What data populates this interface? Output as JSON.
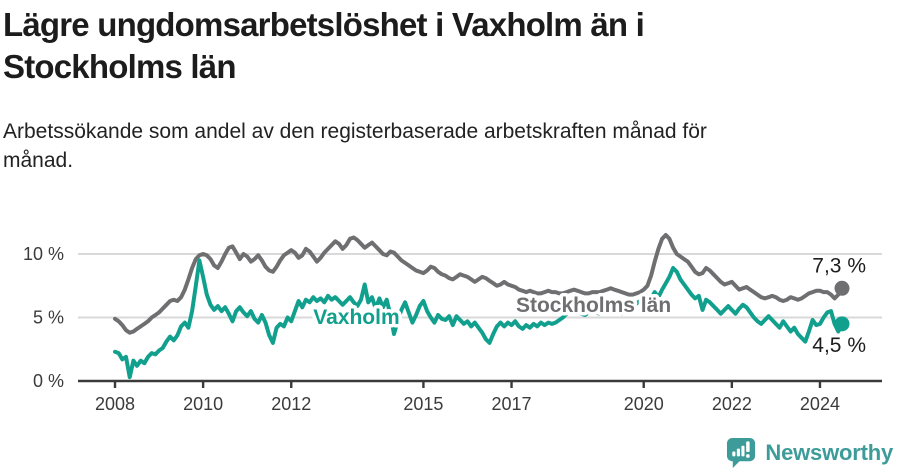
{
  "footer": {
    "brand": "Newsworthy"
  },
  "chart_data": {
    "type": "line",
    "title": "Lägre ungdomsarbetslöshet i Vaxholm än i Stockholms län",
    "subtitle": "Arbetssökande som andel av den registerbaserade arbetskraften månad för månad.",
    "unit": "%",
    "x_start_year": 2008,
    "interval": "monthly",
    "x_ticks": [
      "2008",
      "2010",
      "2012",
      "2015",
      "2017",
      "2020",
      "2022",
      "2024"
    ],
    "y_ticks": [
      {
        "value": 0,
        "label": "0 %"
      },
      {
        "value": 5,
        "label": "5 %"
      },
      {
        "value": 10,
        "label": "10 %"
      }
    ],
    "ylim": [
      0,
      12.3
    ],
    "xlim": [
      2007.2,
      2025.4
    ],
    "grid": "horizontal",
    "legend_position": "inline-labels",
    "axis_color": "#3a3a3a",
    "grid_color": "#d9d9d9",
    "tick_label_color": "#3b3b3b",
    "end_label_color": "#1d1d1d",
    "series": [
      {
        "name": "Stockholms län",
        "color": "#6f6f72",
        "end_label": "7,3 %",
        "end_value": 7.3,
        "label_anchor": {
          "year": 2017.1,
          "value": 5.45
        },
        "values": [
          4.9,
          4.7,
          4.4,
          4.0,
          3.8,
          3.9,
          4.1,
          4.3,
          4.5,
          4.7,
          5.0,
          5.2,
          5.4,
          5.7,
          6.0,
          6.3,
          6.4,
          6.3,
          6.6,
          7.2,
          8.0,
          8.9,
          9.6,
          9.9,
          10.0,
          9.9,
          9.6,
          9.1,
          8.9,
          9.4,
          10.0,
          10.5,
          10.6,
          10.1,
          9.6,
          10.0,
          9.8,
          9.4,
          9.6,
          9.9,
          9.5,
          9.0,
          8.7,
          8.6,
          9.0,
          9.5,
          9.9,
          10.1,
          10.3,
          10.1,
          9.7,
          9.9,
          10.4,
          10.2,
          9.8,
          9.4,
          9.7,
          10.1,
          10.4,
          10.7,
          11.0,
          10.8,
          10.4,
          10.7,
          11.2,
          11.3,
          11.1,
          10.8,
          10.5,
          10.7,
          10.9,
          10.6,
          10.3,
          10.0,
          9.9,
          10.2,
          10.1,
          9.8,
          9.5,
          9.3,
          9.1,
          8.9,
          8.7,
          8.6,
          8.5,
          8.7,
          9.0,
          8.9,
          8.6,
          8.4,
          8.3,
          8.1,
          8.0,
          8.2,
          8.4,
          8.3,
          8.2,
          8.0,
          7.8,
          8.0,
          8.2,
          8.1,
          7.9,
          7.7,
          7.5,
          7.6,
          7.8,
          7.6,
          7.5,
          7.4,
          7.2,
          7.1,
          7.0,
          7.1,
          7.0,
          6.9,
          6.9,
          7.0,
          7.1,
          7.0,
          7.0,
          6.9,
          6.9,
          7.0,
          7.1,
          7.2,
          7.1,
          7.0,
          6.9,
          6.9,
          7.0,
          7.0,
          7.0,
          7.1,
          7.2,
          7.3,
          7.2,
          7.1,
          7.0,
          6.9,
          6.8,
          6.8,
          6.9,
          7.0,
          7.2,
          7.5,
          8.3,
          9.4,
          10.4,
          11.2,
          11.5,
          11.2,
          10.5,
          10.0,
          9.8,
          9.6,
          9.4,
          9.0,
          8.6,
          8.4,
          8.5,
          8.9,
          8.7,
          8.4,
          8.1,
          7.8,
          7.6,
          7.7,
          7.8,
          7.5,
          7.2,
          7.3,
          7.4,
          7.2,
          7.0,
          6.8,
          6.6,
          6.5,
          6.6,
          6.7,
          6.6,
          6.4,
          6.3,
          6.4,
          6.6,
          6.5,
          6.4,
          6.5,
          6.7,
          6.9,
          7.0,
          7.1,
          7.1,
          7.0,
          7.0,
          6.8,
          6.5,
          6.8,
          7.3
        ]
      },
      {
        "name": "Vaxholm",
        "color": "#12a08e",
        "end_label": "4,5 %",
        "end_value": 4.5,
        "label_anchor": {
          "year": 2012.5,
          "value": 4.5
        },
        "values": [
          2.3,
          2.2,
          1.7,
          1.9,
          0.3,
          1.6,
          1.2,
          1.6,
          1.4,
          1.9,
          2.2,
          2.1,
          2.4,
          2.6,
          3.1,
          3.5,
          3.2,
          3.6,
          4.3,
          4.6,
          4.2,
          5.5,
          7.5,
          9.5,
          8.2,
          6.8,
          6.0,
          5.6,
          5.9,
          5.5,
          5.8,
          5.3,
          4.7,
          5.5,
          5.8,
          5.4,
          5.1,
          5.5,
          4.9,
          4.6,
          5.2,
          4.6,
          3.6,
          3.0,
          4.2,
          4.5,
          4.3,
          5.0,
          4.7,
          5.5,
          6.3,
          5.8,
          6.4,
          6.2,
          6.6,
          6.3,
          6.5,
          6.2,
          6.7,
          6.4,
          6.6,
          6.3,
          6.0,
          6.3,
          6.6,
          6.2,
          5.9,
          6.4,
          7.6,
          6.2,
          6.6,
          5.7,
          6.5,
          5.8,
          6.4,
          5.2,
          3.7,
          4.7,
          5.6,
          6.2,
          5.4,
          4.6,
          5.2,
          5.9,
          6.3,
          5.5,
          5.0,
          4.6,
          5.2,
          4.9,
          4.8,
          5.1,
          4.4,
          5.1,
          4.8,
          4.5,
          4.7,
          4.3,
          4.6,
          4.2,
          3.8,
          3.3,
          3.0,
          3.7,
          4.3,
          4.6,
          4.3,
          4.6,
          4.4,
          4.7,
          4.3,
          4.1,
          4.4,
          4.2,
          4.5,
          4.3,
          4.6,
          4.4,
          4.6,
          4.5,
          4.6,
          4.8,
          5.0,
          5.3,
          5.6,
          5.8,
          5.5,
          5.3,
          5.2,
          5.4,
          5.5,
          5.4,
          5.3,
          5.5,
          5.7,
          5.5,
          5.4,
          5.5,
          5.3,
          5.5,
          5.7,
          5.9,
          6.1,
          6.3,
          6.1,
          5.9,
          6.5,
          7.0,
          6.6,
          7.2,
          7.7,
          8.2,
          8.9,
          8.6,
          8.0,
          7.6,
          7.2,
          6.8,
          6.5,
          6.7,
          5.6,
          6.4,
          6.2,
          5.9,
          5.6,
          5.3,
          5.6,
          5.9,
          5.6,
          5.3,
          5.7,
          6.0,
          5.8,
          5.4,
          5.0,
          4.7,
          4.5,
          4.8,
          5.1,
          4.8,
          4.5,
          4.2,
          4.7,
          4.3,
          3.9,
          4.2,
          3.7,
          3.4,
          3.1,
          3.9,
          4.8,
          4.4,
          4.5,
          5.0,
          5.4,
          5.5,
          4.5,
          3.9,
          4.5
        ]
      }
    ]
  }
}
